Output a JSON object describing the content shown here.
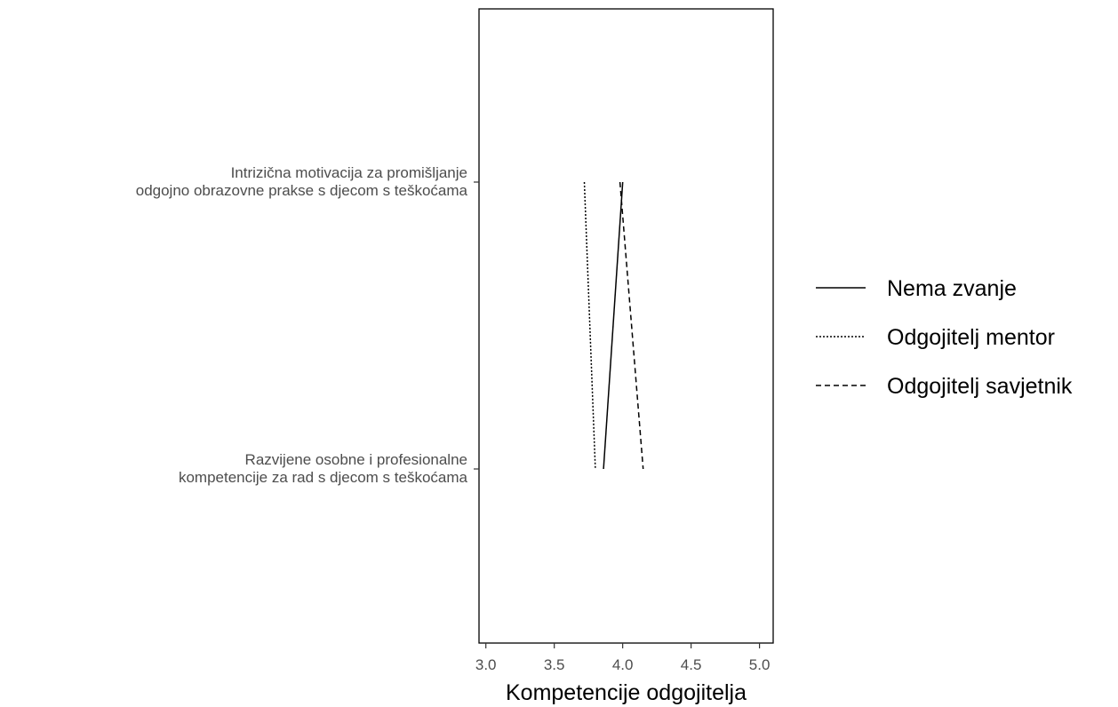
{
  "chart_data": {
    "type": "line",
    "orientation": "horizontal",
    "title": "",
    "xlabel": "Kompetencije odgojitelja",
    "ylabel": "",
    "xlim": [
      2.95,
      5.1
    ],
    "xticks": [
      "3.0",
      "3.5",
      "4.0",
      "4.5",
      "5.0"
    ],
    "xtick_values": [
      3.0,
      3.5,
      4.0,
      4.5,
      5.0
    ],
    "categories": [
      [
        "Intrizična motivacija za promišljanje",
        "odgojno obrazovne prakse s djecom s teškoćama"
      ],
      [
        "Razvijene osobne i profesionalne",
        "kompetencije za rad s djecom s teškoćama"
      ]
    ],
    "series": [
      {
        "name": "Nema zvanje",
        "values": [
          4.0,
          3.86
        ],
        "dash": "solid"
      },
      {
        "name": "Odgojitelj mentor",
        "values": [
          3.72,
          3.8
        ],
        "dash": "dotted"
      },
      {
        "name": "Odgojitelj savjetnik",
        "values": [
          3.98,
          4.15
        ],
        "dash": "dashed"
      }
    ],
    "grid": false,
    "legend_position": "right",
    "colors": {
      "line": "#000000",
      "tick_text": "#4d4d4d",
      "frame": "#000000"
    }
  }
}
